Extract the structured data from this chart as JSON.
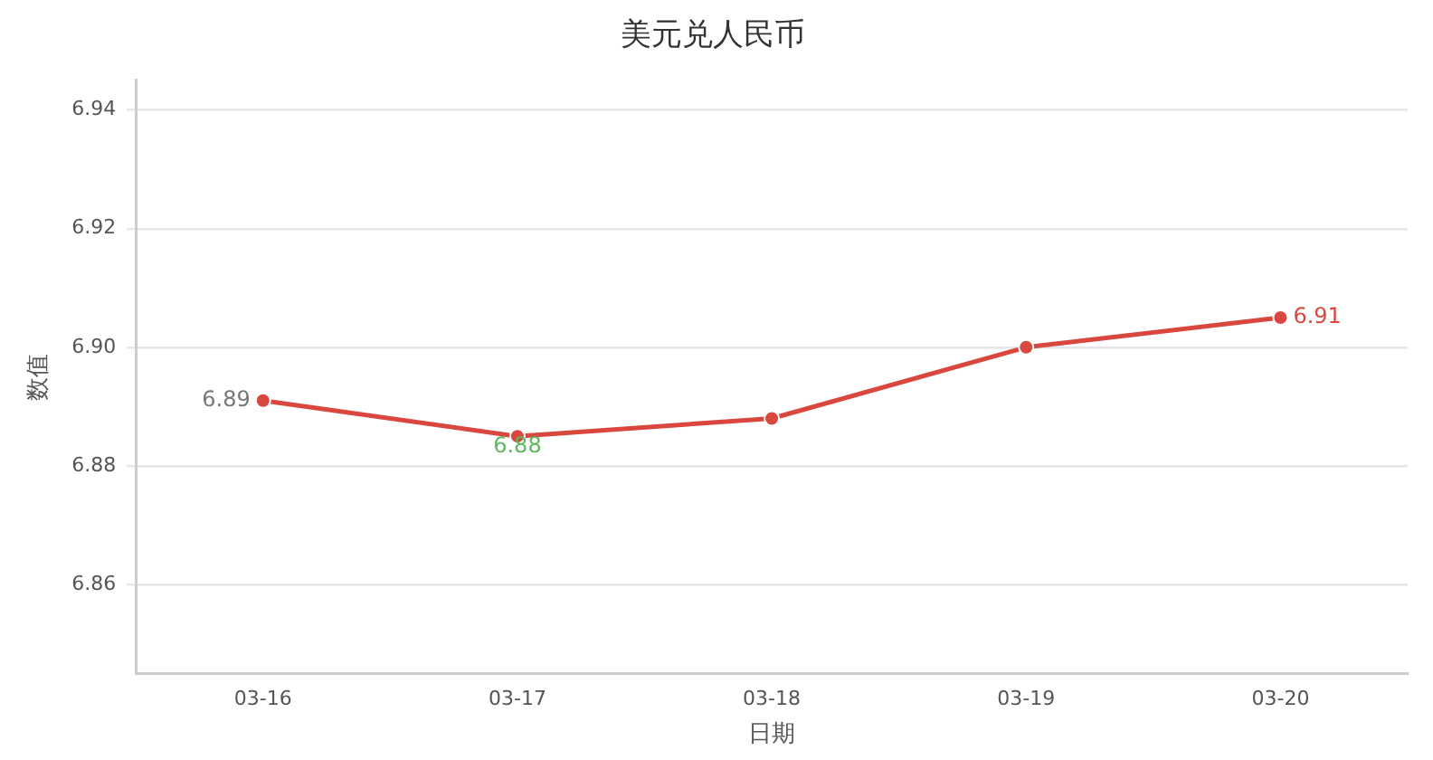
{
  "chart_data": {
    "type": "line",
    "title": "美元兑人民币",
    "xlabel": "日期",
    "ylabel": "数值",
    "categories": [
      "03-16",
      "03-17",
      "03-18",
      "03-19",
      "03-20"
    ],
    "series": [
      {
        "color": "#d9473f",
        "values": [
          6.891,
          6.885,
          6.888,
          6.9,
          6.905
        ],
        "value_labels": [
          "6.89",
          "6.88",
          null,
          null,
          "6.91"
        ]
      }
    ],
    "ylim": [
      6.845,
      6.945
    ],
    "yticks": [
      6.86,
      6.88,
      {
        "value": 6.9,
        "label": "6.90"
      },
      6.92,
      6.94
    ],
    "grid": "y",
    "legend": false,
    "marker": "circle",
    "line_style": "solid"
  }
}
